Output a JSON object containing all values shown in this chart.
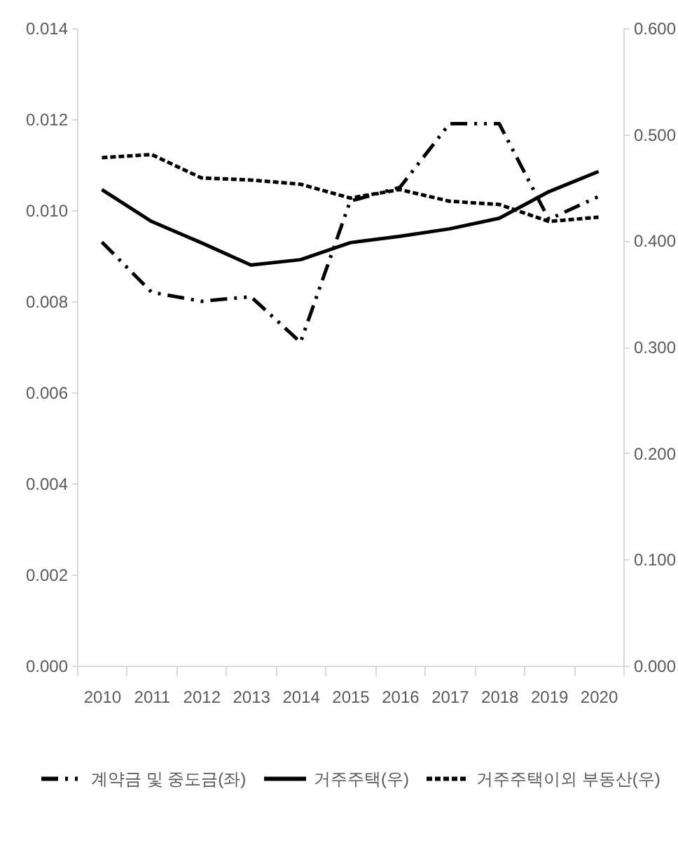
{
  "chart_data": {
    "type": "line",
    "categories": [
      "2010",
      "2011",
      "2012",
      "2013",
      "2014",
      "2015",
      "2016",
      "2017",
      "2018",
      "2019",
      "2020"
    ],
    "series": [
      {
        "name": "계약금 및 중도금(좌)",
        "color": "#000000",
        "line_style": "dashed",
        "values": [
          0.0093,
          0.0082,
          0.008,
          0.0081,
          0.0071,
          0.0102,
          0.0105,
          0.0119,
          0.0119,
          0.0098,
          0.0103
        ]
      },
      {
        "name": "거주주택(우)",
        "color": "#000000",
        "axis": "y2",
        "line_style": "solid",
        "values": [
          0.448,
          0.418,
          0.398,
          0.377,
          0.382,
          0.398,
          0.404,
          0.411,
          0.421,
          0.446,
          0.465
        ]
      },
      {
        "name": "거주주택이외 부동산(우)",
        "color": "#000000",
        "axis": "y2",
        "line_style": "dotted",
        "values": [
          0.478,
          0.481,
          0.459,
          0.457,
          0.453,
          0.44,
          0.448,
          0.437,
          0.434,
          0.418,
          0.422
        ]
      }
    ],
    "ylim": [
      0,
      0.014
    ],
    "yticks": [
      {
        "value": 0,
        "label": "0.000"
      },
      0.002,
      0.004,
      0.006,
      0.008,
      {
        "value": 0.01,
        "label": "0.010"
      },
      0.012,
      0.014
    ],
    "y2lim": [
      0,
      0.6
    ],
    "y2ticks": [
      {
        "value": 0,
        "label": "0.000"
      },
      {
        "value": 0.1,
        "label": "0.100"
      },
      {
        "value": 0.2,
        "label": "0.200"
      },
      {
        "value": 0.3,
        "label": "0.300"
      },
      {
        "value": 0.4,
        "label": "0.400"
      },
      {
        "value": 0.5,
        "label": "0.500"
      },
      {
        "value": 0.6,
        "label": "0.600"
      }
    ],
    "legend": "bottom"
  }
}
